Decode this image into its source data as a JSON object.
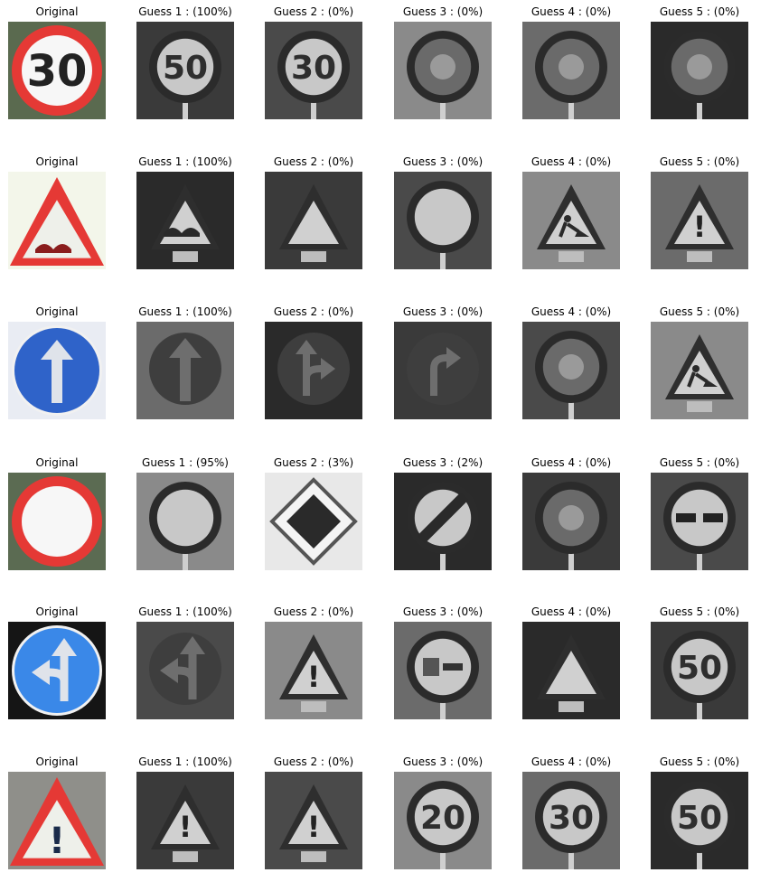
{
  "grid": {
    "rows": [
      {
        "cells": [
          {
            "title": "Original",
            "sign": "speed-30",
            "colored": true
          },
          {
            "title": "Guess 1 : (100%)",
            "sign": "speed-50",
            "colored": false
          },
          {
            "title": "Guess 2 : (0%)",
            "sign": "speed-30",
            "colored": false
          },
          {
            "title": "Guess 3 : (0%)",
            "sign": "circle-dark",
            "colored": false
          },
          {
            "title": "Guess 4 : (0%)",
            "sign": "circle-dark",
            "colored": false
          },
          {
            "title": "Guess 5 : (0%)",
            "sign": "circle-dark",
            "colored": false
          }
        ]
      },
      {
        "cells": [
          {
            "title": "Original",
            "sign": "bumpy-road",
            "colored": true
          },
          {
            "title": "Guess 1 : (100%)",
            "sign": "bumpy-road",
            "colored": false
          },
          {
            "title": "Guess 2 : (0%)",
            "sign": "triangle",
            "colored": false
          },
          {
            "title": "Guess 3 : (0%)",
            "sign": "circle-empty",
            "colored": false
          },
          {
            "title": "Guess 4 : (0%)",
            "sign": "road-work",
            "colored": false
          },
          {
            "title": "Guess 5 : (0%)",
            "sign": "caution",
            "colored": false
          }
        ]
      },
      {
        "cells": [
          {
            "title": "Original",
            "sign": "ahead-only",
            "colored": true
          },
          {
            "title": "Guess 1 : (100%)",
            "sign": "ahead-only",
            "colored": false
          },
          {
            "title": "Guess 2 : (0%)",
            "sign": "straight-right",
            "colored": false
          },
          {
            "title": "Guess 3 : (0%)",
            "sign": "turn-right",
            "colored": false
          },
          {
            "title": "Guess 4 : (0%)",
            "sign": "circle-dark",
            "colored": false
          },
          {
            "title": "Guess 5 : (0%)",
            "sign": "road-work",
            "colored": false
          }
        ]
      },
      {
        "cells": [
          {
            "title": "Original",
            "sign": "no-vehicles",
            "colored": true
          },
          {
            "title": "Guess 1 : (95%)",
            "sign": "circle-empty",
            "colored": false
          },
          {
            "title": "Guess 2 : (3%)",
            "sign": "priority-road",
            "colored": false
          },
          {
            "title": "Guess 3 : (2%)",
            "sign": "end-restriction",
            "colored": false
          },
          {
            "title": "Guess 4 : (0%)",
            "sign": "circle-dark",
            "colored": false
          },
          {
            "title": "Guess 5 : (0%)",
            "sign": "no-passing",
            "colored": false
          }
        ]
      },
      {
        "cells": [
          {
            "title": "Original",
            "sign": "straight-left",
            "colored": true
          },
          {
            "title": "Guess 1 : (100%)",
            "sign": "straight-left",
            "colored": false
          },
          {
            "title": "Guess 2 : (0%)",
            "sign": "caution",
            "colored": false
          },
          {
            "title": "Guess 3 : (0%)",
            "sign": "no-passing-trucks",
            "colored": false
          },
          {
            "title": "Guess 4 : (0%)",
            "sign": "triangle",
            "colored": false
          },
          {
            "title": "Guess 5 : (0%)",
            "sign": "speed-50",
            "colored": false
          }
        ]
      },
      {
        "cells": [
          {
            "title": "Original",
            "sign": "caution",
            "colored": true
          },
          {
            "title": "Guess 1 : (100%)",
            "sign": "caution",
            "colored": false
          },
          {
            "title": "Guess 2 : (0%)",
            "sign": "caution",
            "colored": false
          },
          {
            "title": "Guess 3 : (0%)",
            "sign": "speed-20",
            "colored": false
          },
          {
            "title": "Guess 4 : (0%)",
            "sign": "speed-30",
            "colored": false
          },
          {
            "title": "Guess 5 : (0%)",
            "sign": "speed-50",
            "colored": false
          }
        ]
      }
    ]
  },
  "sign_labels": {
    "speed-20": "20",
    "speed-30": "30",
    "speed-50": "50",
    "caution": "!"
  },
  "colors": {
    "red": "#e53935",
    "blue": "#2f63c9",
    "light-blue": "#3a88e8",
    "white": "#ffffff",
    "gray-bg": "#5a5a5a",
    "dark-bg": "#1f1f1f"
  }
}
